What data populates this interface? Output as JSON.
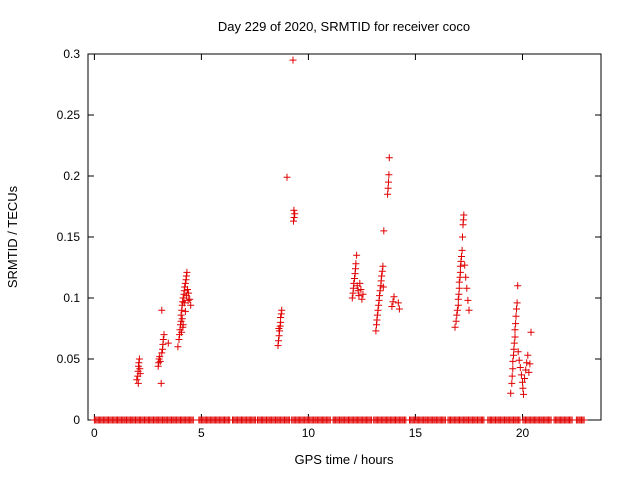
{
  "chart_data": {
    "type": "scatter",
    "title": "Day 229 of 2020, SRMTID for receiver coco",
    "xlabel": "GPS time / hours",
    "ylabel": "SRMTID / TECUs",
    "xlim": [
      -0.3,
      23.67
    ],
    "ylim": [
      0,
      0.3
    ],
    "x_ticks": [
      0,
      5,
      10,
      15,
      20
    ],
    "x_tick_labels": [
      "0",
      "5",
      "10",
      "15",
      "20"
    ],
    "y_ticks": [
      0,
      0.05,
      0.1,
      0.15,
      0.2,
      0.25,
      0.3
    ],
    "y_tick_labels": [
      "0",
      "0.05",
      "0.1",
      "0.15",
      "0.2",
      "0.25",
      "0.3"
    ],
    "grid": false,
    "legend": "none",
    "marker": "plus",
    "color": "#e00000",
    "points": [
      [
        1.98,
        0.033
      ],
      [
        2.02,
        0.036
      ],
      [
        2.04,
        0.04
      ],
      [
        2.06,
        0.044
      ],
      [
        2.08,
        0.047
      ],
      [
        2.1,
        0.05
      ],
      [
        2.12,
        0.042
      ],
      [
        2.14,
        0.038
      ],
      [
        2.05,
        0.03
      ],
      [
        2.98,
        0.044
      ],
      [
        3.0,
        0.047
      ],
      [
        3.02,
        0.05
      ],
      [
        3.05,
        0.052
      ],
      [
        3.08,
        0.048
      ],
      [
        3.12,
        0.03
      ],
      [
        3.15,
        0.055
      ],
      [
        3.18,
        0.058
      ],
      [
        3.2,
        0.062
      ],
      [
        3.22,
        0.066
      ],
      [
        3.25,
        0.07
      ],
      [
        3.15,
        0.09
      ],
      [
        3.45,
        0.063
      ],
      [
        3.9,
        0.06
      ],
      [
        3.95,
        0.066
      ],
      [
        3.98,
        0.07
      ],
      [
        4.0,
        0.074
      ],
      [
        4.02,
        0.078
      ],
      [
        4.05,
        0.081
      ],
      [
        4.05,
        0.086
      ],
      [
        4.08,
        0.09
      ],
      [
        4.1,
        0.094
      ],
      [
        4.1,
        0.083
      ],
      [
        4.12,
        0.097
      ],
      [
        4.15,
        0.1
      ],
      [
        4.15,
        0.078
      ],
      [
        4.18,
        0.103
      ],
      [
        4.2,
        0.106
      ],
      [
        4.2,
        0.096
      ],
      [
        4.22,
        0.109
      ],
      [
        4.25,
        0.112
      ],
      [
        4.25,
        0.089
      ],
      [
        4.28,
        0.115
      ],
      [
        4.3,
        0.118
      ],
      [
        4.3,
        0.102
      ],
      [
        4.32,
        0.121
      ],
      [
        4.35,
        0.107
      ],
      [
        4.38,
        0.098
      ],
      [
        4.4,
        0.104
      ],
      [
        4.45,
        0.099
      ],
      [
        4.5,
        0.094
      ],
      [
        4.07,
        0.072
      ],
      [
        4.13,
        0.076
      ],
      [
        8.58,
        0.061
      ],
      [
        8.6,
        0.065
      ],
      [
        8.63,
        0.069
      ],
      [
        8.65,
        0.073
      ],
      [
        8.68,
        0.077
      ],
      [
        8.7,
        0.08
      ],
      [
        8.7,
        0.084
      ],
      [
        8.73,
        0.087
      ],
      [
        8.75,
        0.09
      ],
      [
        8.62,
        0.075
      ],
      [
        9.0,
        0.199
      ],
      [
        9.28,
        0.295
      ],
      [
        9.3,
        0.163
      ],
      [
        9.33,
        0.166
      ],
      [
        9.36,
        0.169
      ],
      [
        9.32,
        0.172
      ],
      [
        12.05,
        0.1
      ],
      [
        12.08,
        0.104
      ],
      [
        12.1,
        0.108
      ],
      [
        12.12,
        0.112
      ],
      [
        12.15,
        0.116
      ],
      [
        12.18,
        0.12
      ],
      [
        12.2,
        0.124
      ],
      [
        12.22,
        0.128
      ],
      [
        12.25,
        0.135
      ],
      [
        12.28,
        0.11
      ],
      [
        12.32,
        0.106
      ],
      [
        12.36,
        0.102
      ],
      [
        12.4,
        0.112
      ],
      [
        12.45,
        0.107
      ],
      [
        12.5,
        0.099
      ],
      [
        12.55,
        0.103
      ],
      [
        13.15,
        0.073
      ],
      [
        13.18,
        0.078
      ],
      [
        13.2,
        0.082
      ],
      [
        13.22,
        0.086
      ],
      [
        13.25,
        0.09
      ],
      [
        13.28,
        0.094
      ],
      [
        13.3,
        0.098
      ],
      [
        13.32,
        0.102
      ],
      [
        13.35,
        0.106
      ],
      [
        13.38,
        0.11
      ],
      [
        13.4,
        0.114
      ],
      [
        13.42,
        0.118
      ],
      [
        13.45,
        0.122
      ],
      [
        13.48,
        0.126
      ],
      [
        13.5,
        0.109
      ],
      [
        13.52,
        0.155
      ],
      [
        13.7,
        0.185
      ],
      [
        13.72,
        0.19
      ],
      [
        13.74,
        0.195
      ],
      [
        13.76,
        0.201
      ],
      [
        13.78,
        0.215
      ],
      [
        13.9,
        0.093
      ],
      [
        13.95,
        0.097
      ],
      [
        14.0,
        0.101
      ],
      [
        14.2,
        0.096
      ],
      [
        14.25,
        0.091
      ],
      [
        16.85,
        0.076
      ],
      [
        16.9,
        0.081
      ],
      [
        16.93,
        0.086
      ],
      [
        16.96,
        0.09
      ],
      [
        17.0,
        0.094
      ],
      [
        17.0,
        0.099
      ],
      [
        17.03,
        0.103
      ],
      [
        17.05,
        0.108
      ],
      [
        17.05,
        0.113
      ],
      [
        17.08,
        0.117
      ],
      [
        17.1,
        0.121
      ],
      [
        17.1,
        0.126
      ],
      [
        17.13,
        0.13
      ],
      [
        17.15,
        0.134
      ],
      [
        17.18,
        0.139
      ],
      [
        17.2,
        0.15
      ],
      [
        17.22,
        0.16
      ],
      [
        17.24,
        0.164
      ],
      [
        17.26,
        0.168
      ],
      [
        17.3,
        0.127
      ],
      [
        17.35,
        0.117
      ],
      [
        17.4,
        0.108
      ],
      [
        17.45,
        0.098
      ],
      [
        17.5,
        0.09
      ],
      [
        19.45,
        0.022
      ],
      [
        19.5,
        0.03
      ],
      [
        19.52,
        0.036
      ],
      [
        19.55,
        0.042
      ],
      [
        19.55,
        0.048
      ],
      [
        19.58,
        0.053
      ],
      [
        19.6,
        0.058
      ],
      [
        19.62,
        0.063
      ],
      [
        19.65,
        0.068
      ],
      [
        19.65,
        0.074
      ],
      [
        19.68,
        0.079
      ],
      [
        19.7,
        0.085
      ],
      [
        19.72,
        0.091
      ],
      [
        19.75,
        0.096
      ],
      [
        19.78,
        0.11
      ],
      [
        19.8,
        0.056
      ],
      [
        19.85,
        0.049
      ],
      [
        19.9,
        0.043
      ],
      [
        19.95,
        0.037
      ],
      [
        20.0,
        0.031
      ],
      [
        20.02,
        0.026
      ],
      [
        20.05,
        0.021
      ],
      [
        20.1,
        0.034
      ],
      [
        20.15,
        0.041
      ],
      [
        20.2,
        0.047
      ],
      [
        20.25,
        0.053
      ],
      [
        20.3,
        0.039
      ],
      [
        20.35,
        0.046
      ],
      [
        20.4,
        0.072
      ]
    ],
    "zero_value_segments": [
      [
        0.0,
        4.62
      ],
      [
        4.88,
        6.35
      ],
      [
        6.45,
        7.55
      ],
      [
        7.62,
        9.12
      ],
      [
        9.22,
        11.05
      ],
      [
        11.15,
        12.95
      ],
      [
        13.05,
        14.6
      ],
      [
        14.72,
        16.4
      ],
      [
        16.52,
        18.25
      ],
      [
        18.38,
        19.92
      ],
      [
        20.02,
        21.35
      ],
      [
        21.48,
        22.35
      ],
      [
        22.52,
        22.92
      ]
    ],
    "zero_marker_step": 0.06
  }
}
